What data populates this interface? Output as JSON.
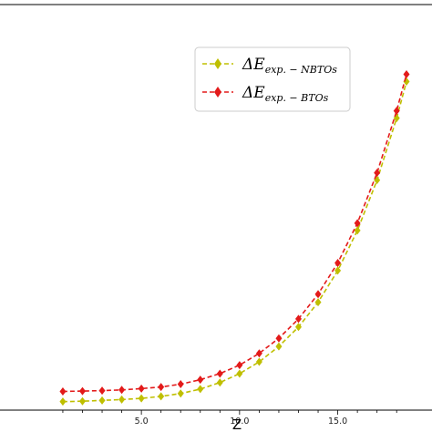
{
  "chart_data": {
    "type": "line",
    "title": "",
    "xlabel": "Z",
    "ylabel": "",
    "xlim": [
      1,
      18.5
    ],
    "ylim": [
      0,
      1
    ],
    "grid": false,
    "legend_position": "top-right",
    "x_ticks": [
      5.0,
      10.0,
      15.0
    ],
    "x_tick_labels": [
      "5.0",
      "10.0",
      "15.0"
    ],
    "series": [
      {
        "name": "NBTOs",
        "legend": {
          "main": "ΔE",
          "sub": "exp. − NBTOs"
        },
        "color": "#bfbf00",
        "marker": "diamond",
        "line_style": "dashed",
        "x": [
          1,
          2,
          3,
          4,
          5,
          6,
          7,
          8,
          9,
          10,
          11,
          12,
          13,
          14,
          15,
          16,
          17,
          18,
          18.5
        ],
        "y": [
          0.021,
          0.022,
          0.024,
          0.026,
          0.029,
          0.034,
          0.041,
          0.052,
          0.068,
          0.09,
          0.119,
          0.157,
          0.205,
          0.266,
          0.344,
          0.443,
          0.567,
          0.72,
          0.81
        ]
      },
      {
        "name": "BTOs",
        "legend": {
          "main": "ΔE",
          "sub": "exp. − BTOs"
        },
        "color": "#e31a1a",
        "marker": "diamond",
        "line_style": "dashed",
        "x": [
          1,
          2,
          3,
          4,
          5,
          6,
          7,
          8,
          9,
          10,
          11,
          12,
          13,
          14,
          15,
          16,
          17,
          18,
          18.5
        ],
        "y": [
          0.046,
          0.047,
          0.048,
          0.05,
          0.053,
          0.057,
          0.064,
          0.075,
          0.09,
          0.111,
          0.14,
          0.177,
          0.225,
          0.286,
          0.363,
          0.461,
          0.585,
          0.738,
          0.828
        ]
      }
    ]
  }
}
